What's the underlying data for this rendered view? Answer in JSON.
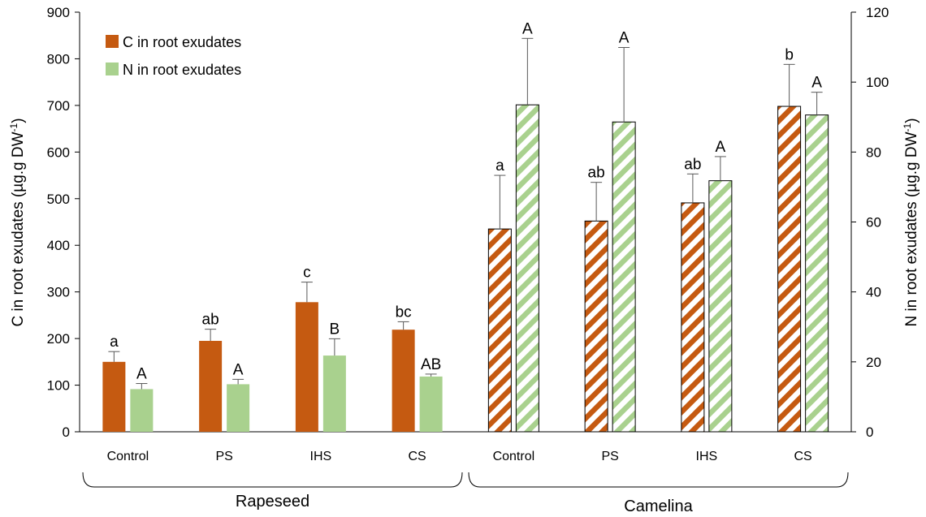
{
  "chart_data": {
    "type": "bar",
    "groups": [
      {
        "name": "Rapeseed",
        "categories": [
          "Control",
          "PS",
          "IHS",
          "CS"
        ],
        "pattern": "solid"
      },
      {
        "name": "Camelina",
        "categories": [
          "Control",
          "PS",
          "IHS",
          "CS"
        ],
        "pattern": "hatched"
      }
    ],
    "series": [
      {
        "name": "C in root exudates",
        "axis": "left",
        "color": "#c55a11",
        "values": [
          150,
          195,
          278,
          219,
          435,
          452,
          491,
          698
        ],
        "errors": [
          22,
          25,
          43,
          17,
          115,
          83,
          62,
          90
        ],
        "labels": [
          "a",
          "ab",
          "c",
          "bc",
          "a",
          "ab",
          "ab",
          "b"
        ]
      },
      {
        "name": "N in root exudates",
        "axis": "right",
        "color": "#a9d18e",
        "values": [
          12.2,
          13.6,
          21.8,
          15.8,
          93.5,
          88.6,
          71.8,
          90.6
        ],
        "errors": [
          1.6,
          1.4,
          4.8,
          0.7,
          19,
          21.3,
          6.9,
          6.5
        ],
        "labels": [
          "A",
          "A",
          "B",
          "AB",
          "A",
          "A",
          "A",
          "A"
        ]
      }
    ],
    "ylabel_left": "C in root exudates (µg.g DW",
    "ylabel_right": "N in root exudates (µg.g DW",
    "ylabel_sup": "-1",
    "ylabel_close": ")",
    "ylim_left": [
      0,
      900
    ],
    "ylim_right": [
      0,
      120
    ],
    "yticks_left": [
      0,
      100,
      200,
      300,
      400,
      500,
      600,
      700,
      800,
      900
    ],
    "yticks_right": [
      0,
      20,
      40,
      60,
      80,
      100,
      120
    ],
    "grid": false,
    "legend_position": "top-left"
  }
}
